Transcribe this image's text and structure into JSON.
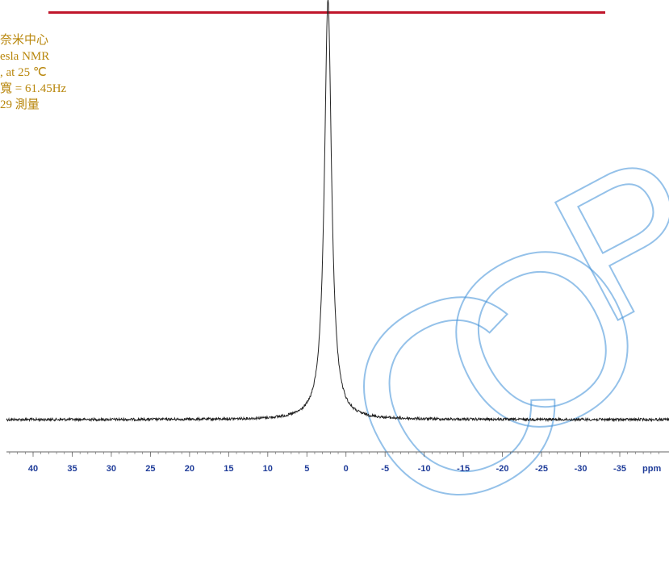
{
  "colors": {
    "text_gold": "#b8860b",
    "title_red": "#c0162b",
    "watermark_blue": "#3d8fd8",
    "tick_blue": "#1f3c99",
    "spectrum": "#222222",
    "axis": "#666666"
  },
  "info_lines": [
    "奈米中心",
    "esla NMR",
    ", at 25 ℃",
    "寬 = 61.45Hz",
    "29 測量"
  ],
  "watermark_letters": [
    "C",
    "O",
    "P"
  ],
  "chart_data": {
    "type": "line",
    "title": "",
    "xlabel": "ppm",
    "ylabel": "",
    "xlim": [
      44,
      -40
    ],
    "x_ticks": [
      40,
      35,
      30,
      25,
      20,
      15,
      10,
      5,
      0,
      -5,
      -10,
      -15,
      -20,
      -25,
      -30,
      -35
    ],
    "x_tick_labels": [
      "40",
      "35",
      "30",
      "25",
      "20",
      "15",
      "10",
      "5",
      "0",
      "-5",
      "-10",
      "-15",
      "-20",
      "-25",
      "-30",
      "-35"
    ],
    "x_unit_label": "ppm",
    "grid": false,
    "series": [
      {
        "peak_center_ppm": 2.3,
        "peak_height": 1.0,
        "linewidth_hz": 61.45
      }
    ]
  }
}
